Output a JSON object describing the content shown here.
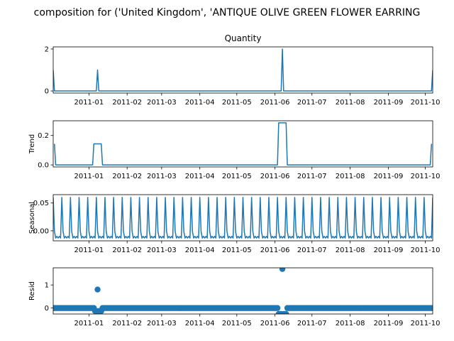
{
  "figure": {
    "suptitle": "composition for ('United Kingdom', 'ANTIQUE OLIVE GREEN FLOWER EARRING"
  },
  "colors": {
    "series": "#1f77b4"
  },
  "chart_data": [
    {
      "type": "line",
      "title": "Quantity",
      "ylabel": "",
      "x_start": "2010-12-03",
      "x_end": "2011-10-07",
      "xticks": [
        "2011-01",
        "2011-02",
        "2011-03",
        "2011-04",
        "2011-05",
        "2011-06",
        "2011-07",
        "2011-08",
        "2011-09",
        "2011-10"
      ],
      "yticks": [
        0,
        2
      ],
      "ylim": [
        -0.1,
        2.1
      ],
      "points": [
        [
          "2010-12-03",
          1
        ],
        [
          "2010-12-04",
          0
        ],
        [
          "2011-01-07",
          0
        ],
        [
          "2011-01-08",
          1
        ],
        [
          "2011-01-09",
          0
        ],
        [
          "2011-06-06",
          0
        ],
        [
          "2011-06-07",
          2
        ],
        [
          "2011-06-08",
          0
        ],
        [
          "2011-10-06",
          0
        ],
        [
          "2011-10-07",
          1
        ]
      ]
    },
    {
      "type": "line",
      "title": "",
      "ylabel": "Trend",
      "x_start": "2010-12-03",
      "x_end": "2011-10-07",
      "xticks": [
        "2011-01",
        "2011-02",
        "2011-03",
        "2011-04",
        "2011-05",
        "2011-06",
        "2011-07",
        "2011-08",
        "2011-09",
        "2011-10"
      ],
      "yticks": [
        0.0,
        0.2
      ],
      "ylim": [
        -0.014,
        0.3
      ],
      "points": [
        [
          "2010-12-04",
          0.143
        ],
        [
          "2010-12-05",
          0
        ],
        [
          "2011-01-04",
          0
        ],
        [
          "2011-01-05",
          0.143
        ],
        [
          "2011-01-11",
          0.143
        ],
        [
          "2011-01-12",
          0
        ],
        [
          "2011-06-03",
          0
        ],
        [
          "2011-06-04",
          0.286
        ],
        [
          "2011-06-10",
          0.286
        ],
        [
          "2011-06-11",
          0
        ],
        [
          "2011-10-05",
          0
        ],
        [
          "2011-10-06",
          0.143
        ]
      ]
    },
    {
      "type": "line",
      "title": "",
      "ylabel": "Seasonal",
      "x_start": "2010-12-03",
      "x_end": "2011-10-07",
      "xticks": [
        "2011-01",
        "2011-02",
        "2011-03",
        "2011-04",
        "2011-05",
        "2011-06",
        "2011-07",
        "2011-08",
        "2011-09",
        "2011-10"
      ],
      "yticks": [
        0.0,
        0.05
      ],
      "ylim": [
        -0.018,
        0.065
      ],
      "period_days": 7,
      "peak_start": "2010-12-03",
      "peak": 0.06,
      "pattern": [
        0.06,
        -0.001,
        -0.013,
        -0.01,
        -0.013,
        -0.01,
        -0.013
      ]
    },
    {
      "type": "scatter",
      "title": "",
      "ylabel": "Resid",
      "x_start": "2010-12-03",
      "x_end": "2011-10-07",
      "xticks": [
        "2011-01",
        "2011-02",
        "2011-03",
        "2011-04",
        "2011-05",
        "2011-06",
        "2011-07",
        "2011-08",
        "2011-09",
        "2011-10"
      ],
      "yticks": [
        0,
        1
      ],
      "ylim": [
        -0.27,
        1.75
      ],
      "baseline": -0.01,
      "outliers": [
        [
          "2011-01-08",
          0.8
        ],
        [
          "2011-01-06",
          -0.14
        ],
        [
          "2011-01-07",
          -0.14
        ],
        [
          "2011-01-09",
          -0.14
        ],
        [
          "2011-01-10",
          -0.14
        ],
        [
          "2011-01-11",
          -0.14
        ],
        [
          "2011-06-07",
          1.7
        ],
        [
          "2011-06-04",
          -0.27
        ],
        [
          "2011-06-05",
          -0.27
        ],
        [
          "2011-06-06",
          -0.27
        ],
        [
          "2011-06-08",
          -0.27
        ],
        [
          "2011-06-09",
          -0.27
        ],
        [
          "2011-06-10",
          -0.27
        ]
      ]
    }
  ]
}
